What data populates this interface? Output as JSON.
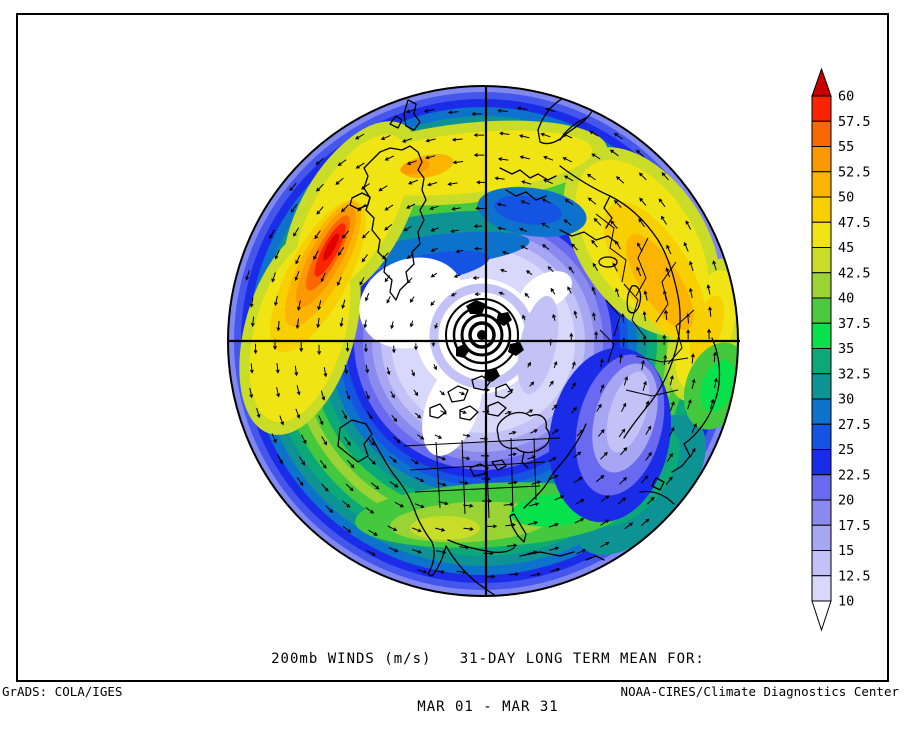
{
  "title": {
    "line1": "200mb WINDS (m/s)   31-DAY LONG TERM MEAN FOR:",
    "line2": "MAR 01 - MAR 31"
  },
  "footer": {
    "left": "GrADS: COLA/IGES",
    "right": "NOAA-CIRES/Climate Diagnostics Center"
  },
  "chart_data": {
    "type": "heatmap",
    "title": "200mb WINDS (m/s)",
    "statistic": "31-DAY LONG TERM MEAN",
    "period": "MAR 01 - MAR 31",
    "units": "m/s",
    "projection": "Northern Hemisphere polar stereographic, North America at bottom",
    "grid": "crosshair meridian lines through pole",
    "legend_position": "right",
    "colorbar": {
      "min": 10,
      "max": 60,
      "interval": 2.5,
      "levels": [
        10,
        12.5,
        15,
        17.5,
        20,
        22.5,
        25,
        27.5,
        30,
        32.5,
        35,
        37.5,
        40,
        42.5,
        45,
        47.5,
        50,
        52.5,
        55,
        57.5,
        60
      ],
      "colors": [
        "#d8d8fa",
        "#c2c2f6",
        "#a6a6f2",
        "#8a8aee",
        "#6a6af0",
        "#1a2ce8",
        "#1554e2",
        "#0d72cc",
        "#0e9394",
        "#0ba878",
        "#06e14c",
        "#4cc83e",
        "#9ad434",
        "#c8dc28",
        "#f0e414",
        "#f8d000",
        "#fcb400",
        "#fc9800",
        "#fc6800",
        "#fc2400"
      ],
      "above_color": "#c80000",
      "below_color": "#ffffff"
    },
    "features": [
      {
        "name": "North Atlantic jet maximum",
        "approx_max_ms": 60,
        "screen_position": "upper-left, red/orange core"
      },
      {
        "name": "Subtropical Middle East / Asia jet",
        "approx_max_ms": 52.5,
        "screen_position": "upper-right, yellow/amber band"
      },
      {
        "name": "East Asia / Pacific jet",
        "approx_max_ms": 50,
        "screen_position": "right edge, yellow core"
      },
      {
        "name": "North America subtropical jet",
        "approx_max_ms": 40,
        "screen_position": "bottom, green band across southern US"
      },
      {
        "name": "Polar wind minimum",
        "approx_max_ms": 10,
        "screen_position": "center (pole), white region"
      }
    ],
    "wind_vectors": "small black arrows showing westerly (counterclockwise) circulation around the pole"
  }
}
